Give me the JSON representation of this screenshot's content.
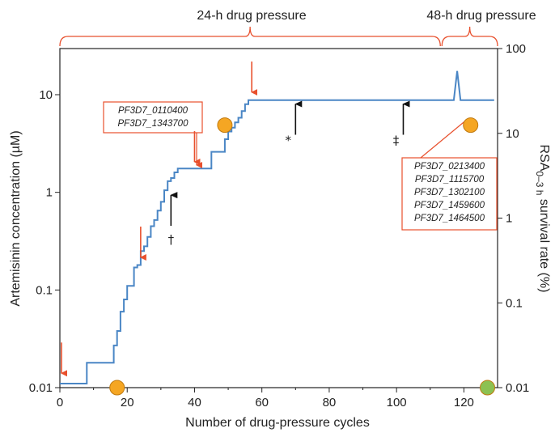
{
  "chart_data": {
    "type": "line",
    "xlabel": "Number of drug-pressure cycles",
    "ylabel_left": "Artemisinin concentration (µM)",
    "ylabel_right_main": "RSA",
    "ylabel_right_sub": "0–3 h",
    "ylabel_right_tail": " survival  rate (%)",
    "xlim": [
      0,
      130
    ],
    "ylim_left": [
      0.01,
      20
    ],
    "ylim_right": [
      0.01,
      100
    ],
    "y_scale": "log",
    "grid": false,
    "x_ticks": [
      "0",
      "20",
      "40",
      "60",
      "80",
      "100",
      "120"
    ],
    "y_left_ticks": [
      "0.01",
      "0.1",
      "1",
      "10"
    ],
    "y_right_ticks": [
      "0.01",
      "0.1",
      "1",
      "10",
      "100"
    ],
    "pressure_phases": [
      {
        "label": "24-h drug pressure",
        "start": 0,
        "end": 113
      },
      {
        "label": "48-h drug pressure",
        "start": 113,
        "end": 130
      }
    ],
    "series": [
      {
        "color": "#4a86c5",
        "x": [
          0,
          8,
          8,
          16,
          16,
          17,
          17,
          18,
          18,
          19,
          19,
          20,
          20,
          21,
          21,
          22,
          22,
          23,
          23,
          24,
          24,
          25,
          25,
          26,
          26,
          27,
          27,
          28,
          28,
          29,
          29,
          30,
          30,
          31,
          31,
          32,
          32,
          33,
          33,
          34,
          34,
          35,
          35,
          36,
          36,
          37,
          37,
          41,
          41,
          45,
          45,
          47,
          47,
          49,
          49,
          50,
          50,
          51,
          51,
          52,
          52,
          53,
          53,
          54,
          54,
          55,
          55,
          56,
          56,
          57,
          57,
          116,
          117,
          118,
          119,
          120,
          129
        ],
        "y": [
          0.011,
          0.011,
          0.018,
          0.018,
          0.027,
          0.027,
          0.038,
          0.038,
          0.06,
          0.06,
          0.08,
          0.08,
          0.11,
          0.11,
          0.11,
          0.11,
          0.17,
          0.17,
          0.18,
          0.18,
          0.25,
          0.25,
          0.28,
          0.28,
          0.35,
          0.35,
          0.45,
          0.45,
          0.52,
          0.52,
          0.65,
          0.65,
          0.8,
          0.8,
          1.05,
          1.05,
          1.3,
          1.3,
          1.4,
          1.4,
          1.6,
          1.6,
          1.75,
          1.75,
          1.75,
          1.75,
          1.75,
          1.75,
          1.75,
          1.75,
          2.6,
          2.6,
          2.6,
          2.6,
          3.5,
          3.5,
          4.2,
          4.2,
          4.6,
          4.6,
          5.2,
          5.2,
          5.8,
          5.8,
          6.8,
          6.8,
          8.0,
          8.0,
          8.8,
          8.8,
          8.8,
          8.8,
          8.8,
          17.5,
          8.8,
          8.8,
          8.8
        ]
      }
    ],
    "rsa_points": [
      {
        "x": 17,
        "rsa": 0.01,
        "color": "#f5a623"
      },
      {
        "x": 49,
        "rsa": 12.5,
        "color": "#f5a623"
      },
      {
        "x": 122,
        "rsa": 12.5,
        "color": "#f5a623"
      },
      {
        "x": 127,
        "rsa": 0.01,
        "color": "#8cc152"
      }
    ],
    "red_arrows": [
      {
        "x": 0,
        "conc": 0.013
      },
      {
        "x": 24,
        "conc": 0.2
      },
      {
        "x": 40,
        "conc": 1.9
      },
      {
        "x": 57,
        "conc": 9.8
      }
    ],
    "black_arrows": [
      {
        "x": 33,
        "conc": 1.05,
        "symbol": "†"
      },
      {
        "x": 70,
        "conc": 9.0,
        "symbol": "*"
      },
      {
        "x": 102,
        "conc": 9.0,
        "symbol": "‡"
      }
    ],
    "gene_boxes": [
      {
        "genes": [
          "PF3D7_0110400",
          "PF3D7_1343700"
        ],
        "pointer_color": "#e8502d"
      },
      {
        "genes": [
          "PF3D7_0213400",
          "PF3D7_1115700",
          "PF3D7_1302100",
          "PF3D7_1459600",
          "PF3D7_1464500"
        ],
        "pointer_color": "#e8502d"
      }
    ],
    "colors": {
      "line": "#4a86c5",
      "annotation": "#e8502d",
      "axis": "#222222"
    }
  }
}
